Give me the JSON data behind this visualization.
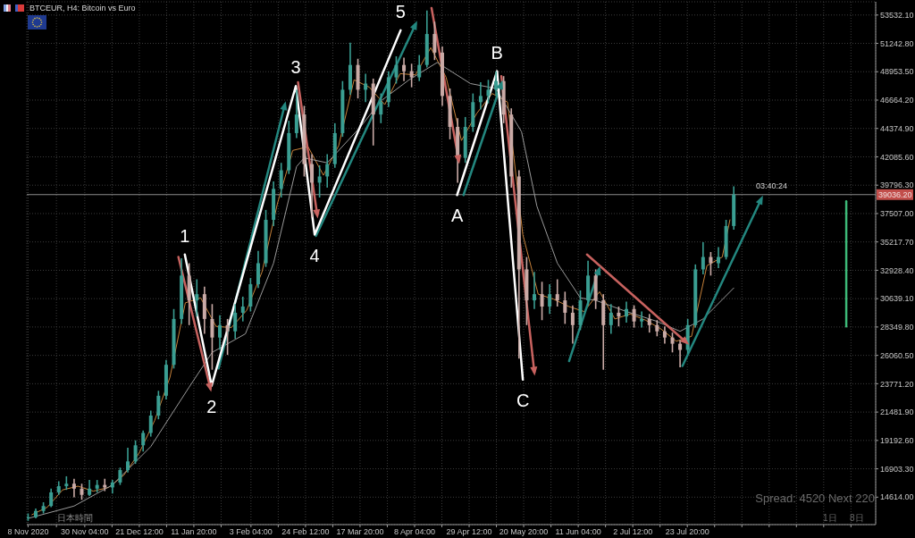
{
  "chart_data": {
    "type": "candlestick",
    "title": "BTCEUR, H4: Bitcoin vs Euro",
    "x": [
      "2020-11-08",
      "2020-11-11",
      "2020-11-14",
      "2020-11-17",
      "2020-11-20",
      "2020-11-23",
      "2020-11-26",
      "2020-11-29",
      "2020-12-02",
      "2020-12-05",
      "2020-12-08",
      "2020-12-11",
      "2020-12-14",
      "2020-12-17",
      "2020-12-20",
      "2020-12-23",
      "2020-12-26",
      "2020-12-29",
      "2021-01-01",
      "2021-01-04",
      "2021-01-07",
      "2021-01-10",
      "2021-01-13",
      "2021-01-16",
      "2021-01-19",
      "2021-01-22",
      "2021-01-25",
      "2021-01-28",
      "2021-01-31",
      "2021-02-03",
      "2021-02-06",
      "2021-02-09",
      "2021-02-12",
      "2021-02-15",
      "2021-02-18",
      "2021-02-21",
      "2021-02-24",
      "2021-02-27",
      "2021-03-02",
      "2021-03-05",
      "2021-03-08",
      "2021-03-11",
      "2021-03-14",
      "2021-03-17",
      "2021-03-20",
      "2021-03-23",
      "2021-03-26",
      "2021-03-29",
      "2021-04-01",
      "2021-04-04",
      "2021-04-07",
      "2021-04-10",
      "2021-04-13",
      "2021-04-16",
      "2021-04-19",
      "2021-04-22",
      "2021-04-25",
      "2021-04-28",
      "2021-05-01",
      "2021-05-04",
      "2021-05-07",
      "2021-05-10",
      "2021-05-13",
      "2021-05-16",
      "2021-05-19",
      "2021-05-22",
      "2021-05-25",
      "2021-05-28",
      "2021-05-31",
      "2021-06-03",
      "2021-06-06",
      "2021-06-09",
      "2021-06-12",
      "2021-06-15",
      "2021-06-18",
      "2021-06-21",
      "2021-06-24",
      "2021-06-27",
      "2021-06-30",
      "2021-07-03",
      "2021-07-06",
      "2021-07-09",
      "2021-07-12",
      "2021-07-15",
      "2021-07-18",
      "2021-07-21",
      "2021-07-24",
      "2021-07-27",
      "2021-07-30",
      "2021-08-02",
      "2021-08-05",
      "2021-08-08",
      "2021-08-11"
    ],
    "ohlc": [
      [
        12900,
        13300,
        12700,
        13000
      ],
      [
        13000,
        13700,
        12900,
        13500
      ],
      [
        13500,
        14200,
        13300,
        13900
      ],
      [
        13900,
        15300,
        13800,
        15000
      ],
      [
        15000,
        15900,
        14800,
        15500
      ],
      [
        15500,
        16300,
        15200,
        15700
      ],
      [
        15700,
        16100,
        14600,
        15300
      ],
      [
        15300,
        15700,
        14400,
        14800
      ],
      [
        14800,
        16000,
        14700,
        15300
      ],
      [
        15300,
        16000,
        15000,
        15600
      ],
      [
        15600,
        16100,
        15100,
        15400
      ],
      [
        15400,
        16000,
        14900,
        15800
      ],
      [
        15800,
        17000,
        15600,
        16800
      ],
      [
        16800,
        18600,
        16600,
        17500
      ],
      [
        17500,
        19200,
        17300,
        18800
      ],
      [
        18800,
        20000,
        18300,
        19800
      ],
      [
        19800,
        21600,
        19500,
        21200
      ],
      [
        21200,
        23200,
        20900,
        22800
      ],
      [
        22800,
        25700,
        22500,
        25300
      ],
      [
        25300,
        29800,
        25000,
        29000
      ],
      [
        29000,
        33900,
        28600,
        32500
      ],
      [
        32500,
        33500,
        28500,
        30500
      ],
      [
        30500,
        32200,
        29200,
        31000
      ],
      [
        31000,
        31600,
        27800,
        29000
      ],
      [
        29000,
        30200,
        24900,
        27500
      ],
      [
        27500,
        29300,
        26500,
        28500
      ],
      [
        28500,
        29000,
        26100,
        28000
      ],
      [
        28000,
        30200,
        27400,
        29500
      ],
      [
        29500,
        30800,
        28800,
        30000
      ],
      [
        30000,
        32300,
        29600,
        31800
      ],
      [
        31800,
        34500,
        31500,
        33500
      ],
      [
        33500,
        37800,
        33200,
        37000
      ],
      [
        37000,
        40100,
        36500,
        39500
      ],
      [
        39500,
        41600,
        38800,
        41000
      ],
      [
        41000,
        45000,
        40700,
        44000
      ],
      [
        44000,
        47500,
        43600,
        45500
      ],
      [
        45500,
        46200,
        40500,
        41500
      ],
      [
        41500,
        42300,
        37200,
        40000
      ],
      [
        40000,
        41400,
        38800,
        40500
      ],
      [
        40500,
        42300,
        39600,
        41500
      ],
      [
        41500,
        44800,
        41200,
        44000
      ],
      [
        44000,
        48200,
        43700,
        47500
      ],
      [
        47500,
        51300,
        47100,
        49500
      ],
      [
        49500,
        50000,
        46800,
        47500
      ],
      [
        47500,
        48800,
        46500,
        48000
      ],
      [
        48000,
        48400,
        43000,
        45500
      ],
      [
        45500,
        47200,
        44800,
        46500
      ],
      [
        46500,
        49000,
        46100,
        48500
      ],
      [
        48500,
        50200,
        48000,
        49500
      ],
      [
        49500,
        50100,
        48200,
        49000
      ],
      [
        49000,
        49600,
        47700,
        48500
      ],
      [
        48500,
        50300,
        48200,
        49500
      ],
      [
        49500,
        53900,
        49300,
        52000
      ],
      [
        52000,
        53000,
        49900,
        50500
      ],
      [
        50500,
        51000,
        46200,
        47000
      ],
      [
        47000,
        47600,
        43500,
        44500
      ],
      [
        44500,
        45200,
        40000,
        42000
      ],
      [
        42000,
        45300,
        41600,
        44500
      ],
      [
        44500,
        47200,
        44100,
        46500
      ],
      [
        46500,
        48100,
        45900,
        47000
      ],
      [
        47000,
        48300,
        46400,
        47500
      ],
      [
        47500,
        49000,
        47000,
        48200
      ],
      [
        48200,
        48600,
        44800,
        45500
      ],
      [
        45500,
        46000,
        39600,
        40500
      ],
      [
        40500,
        41000,
        25800,
        33000
      ],
      [
        33000,
        34000,
        28500,
        30500
      ],
      [
        30500,
        32800,
        29800,
        31000
      ],
      [
        31000,
        32000,
        28900,
        30000
      ],
      [
        30000,
        31800,
        29400,
        31000
      ],
      [
        31000,
        32200,
        30000,
        30500
      ],
      [
        30500,
        31200,
        28600,
        29500
      ],
      [
        29500,
        30100,
        27000,
        28500
      ],
      [
        28500,
        31300,
        28100,
        30500
      ],
      [
        30500,
        33700,
        30100,
        32500
      ],
      [
        32500,
        33000,
        29800,
        30500
      ],
      [
        30500,
        31000,
        24900,
        28500
      ],
      [
        28500,
        30200,
        27800,
        29500
      ],
      [
        29500,
        30000,
        28400,
        29200
      ],
      [
        29200,
        30400,
        28700,
        29800
      ],
      [
        29800,
        30100,
        28300,
        28800
      ],
      [
        28800,
        29600,
        28300,
        29000
      ],
      [
        29000,
        29400,
        27900,
        28500
      ],
      [
        28500,
        28900,
        27600,
        28000
      ],
      [
        28000,
        28400,
        27000,
        27500
      ],
      [
        27500,
        27900,
        26300,
        27000
      ],
      [
        27000,
        27300,
        25100,
        26500
      ],
      [
        26500,
        29000,
        26200,
        28500
      ],
      [
        28500,
        33400,
        28300,
        33000
      ],
      [
        33000,
        35200,
        32600,
        34000
      ],
      [
        34000,
        34400,
        32500,
        33500
      ],
      [
        33500,
        34800,
        33100,
        34000
      ],
      [
        34000,
        37000,
        33800,
        36500
      ],
      [
        36500,
        39700,
        36200,
        39036.2
      ]
    ],
    "colors": [
      "#3a9e92",
      "#3a9e92",
      "#3a9e92",
      "#3a9e92",
      "#3a9e92",
      "#3a9e92",
      "#c9aaa6",
      "#c9aaa6",
      "#3a9e92",
      "#3a9e92",
      "#c9aaa6",
      "#3a9e92",
      "#3a9e92",
      "#3a9e92",
      "#3a9e92",
      "#3a9e92",
      "#3a9e92",
      "#3a9e92",
      "#3a9e92",
      "#3a9e92",
      "#3a9e92",
      "#c9aaa6",
      "#3a9e92",
      "#c9aaa6",
      "#c9aaa6",
      "#3a9e92",
      "#c9aaa6",
      "#3a9e92",
      "#3a9e92",
      "#3a9e92",
      "#3a9e92",
      "#3a9e92",
      "#3a9e92",
      "#3a9e92",
      "#3a9e92",
      "#3a9e92",
      "#c9aaa6",
      "#c9aaa6",
      "#3a9e92",
      "#3a9e92",
      "#3a9e92",
      "#3a9e92",
      "#3a9e92",
      "#c9aaa6",
      "#3a9e92",
      "#c9aaa6",
      "#3a9e92",
      "#3a9e92",
      "#3a9e92",
      "#c9aaa6",
      "#c9aaa6",
      "#3a9e92",
      "#3a9e92",
      "#c9aaa6",
      "#c9aaa6",
      "#c9aaa6",
      "#c9aaa6",
      "#3a9e92",
      "#3a9e92",
      "#3a9e92",
      "#3a9e92",
      "#3a9e92",
      "#c9aaa6",
      "#c9aaa6",
      "#c9aaa6",
      "#c9aaa6",
      "#3a9e92",
      "#c9aaa6",
      "#3a9e92",
      "#c9aaa6",
      "#c9aaa6",
      "#c9aaa6",
      "#3a9e92",
      "#3a9e92",
      "#c9aaa6",
      "#c9aaa6",
      "#3a9e92",
      "#c9aaa6",
      "#3a9e92",
      "#c9aaa6",
      "#3a9e92",
      "#c9aaa6",
      "#c9aaa6",
      "#c9aaa6",
      "#c9aaa6",
      "#c9aaa6",
      "#3a9e92",
      "#3a9e92",
      "#3a9e92",
      "#c9aaa6",
      "#3a9e92",
      "#3a9e92",
      "#3a9e92"
    ],
    "series": [
      {
        "type": "line",
        "color": "#c8823a",
        "x": [
          "2020-11-09T12:00",
          "2020-11-15T12:00",
          "2020-11-21T12:00",
          "2020-11-27T12:00",
          "2020-12-03T12:00",
          "2020-12-09T12:00",
          "2020-12-15T12:00",
          "2020-12-21T12:00",
          "2020-12-27T12:00",
          "2021-01-02T12:00",
          "2021-01-08T12:00",
          "2021-01-14T12:00",
          "2021-01-20T12:00",
          "2021-01-26T12:00",
          "2021-02-01T12:00",
          "2021-02-07T12:00",
          "2021-02-13T12:00",
          "2021-02-19T12:00",
          "2021-02-25T12:00",
          "2021-03-03T12:00",
          "2021-03-09T12:00",
          "2021-03-15T12:00",
          "2021-03-21T12:00",
          "2021-03-27T12:00",
          "2021-04-02T12:00",
          "2021-04-08T12:00",
          "2021-04-14T12:00",
          "2021-04-20T12:00",
          "2021-04-26T12:00",
          "2021-05-02T12:00",
          "2021-05-08T12:00",
          "2021-05-14T12:00",
          "2021-05-20T12:00",
          "2021-05-26T12:00",
          "2021-06-01T12:00",
          "2021-06-07T12:00",
          "2021-06-13T12:00",
          "2021-06-19T12:00",
          "2021-06-25T12:00",
          "2021-07-01T12:00",
          "2021-07-07T12:00",
          "2021-07-13T12:00",
          "2021-07-19T12:00",
          "2021-07-25T12:00",
          "2021-07-31T12:00",
          "2021-08-06T12:00",
          "2021-08-09T12:00"
        ],
        "values": [
          13200,
          13800,
          15200,
          15500,
          15100,
          15400,
          16400,
          18200,
          20800,
          24300,
          30300,
          30700,
          28400,
          28300,
          29700,
          32800,
          38300,
          42600,
          42900,
          40600,
          43000,
          48300,
          47700,
          46300,
          48800,
          48700,
          50900,
          48500,
          43400,
          45600,
          47200,
          46500,
          35800,
          31000,
          30600,
          30000,
          29600,
          31200,
          29000,
          29400,
          28900,
          28200,
          27200,
          27600,
          33300,
          34000,
          37000
        ]
      },
      {
        "type": "line",
        "color": "#9a9a9a",
        "x": [
          "2020-11-08",
          "2020-11-26",
          "2020-12-11",
          "2020-12-26",
          "2021-01-10",
          "2021-01-19",
          "2021-02-01",
          "2021-02-12",
          "2021-02-21",
          "2021-02-24",
          "2021-03-05",
          "2021-03-18",
          "2021-03-26",
          "2021-04-06",
          "2021-04-17",
          "2021-04-30",
          "2021-05-10",
          "2021-05-20",
          "2021-05-26",
          "2021-06-03",
          "2021-06-12",
          "2021-06-18",
          "2021-06-30",
          "2021-07-12",
          "2021-07-21",
          "2021-07-30",
          "2021-08-11"
        ],
        "values": [
          12900,
          13900,
          15600,
          18700,
          23500,
          26300,
          27800,
          33500,
          41300,
          42000,
          41600,
          44500,
          46600,
          48300,
          49700,
          48000,
          47600,
          44100,
          38100,
          33500,
          30700,
          30500,
          29600,
          28800,
          28000,
          29000,
          31500
        ]
      },
      {
        "type": "line",
        "color": "#c8625f",
        "marker": "triangle",
        "x": [
          "2021-01-05T19:00",
          "2021-01-18T07:00"
        ],
        "values": [
          34000,
          23400
        ]
      },
      {
        "type": "line",
        "color": "#c8625f",
        "marker": "triangle",
        "x": [
          "2021-02-21T14:00",
          "2021-03-01T02:00"
        ],
        "values": [
          48100,
          37400
        ]
      },
      {
        "type": "line",
        "color": "#c8625f",
        "marker": "triangle",
        "x": [
          "2021-04-14T19:00",
          "2021-04-25T10:00"
        ],
        "values": [
          54100,
          41800
        ]
      },
      {
        "type": "line",
        "color": "#c8625f",
        "marker": "triangle",
        "x": [
          "2021-05-12T02:00",
          "2021-05-25T00:00"
        ],
        "values": [
          48600,
          24700
        ]
      },
      {
        "type": "line",
        "color": "#c8625f",
        "marker": "triangle",
        "x": [
          "2021-06-14T14:00",
          "2021-07-23T12:00"
        ],
        "values": [
          34200,
          27100
        ]
      },
      {
        "type": "line",
        "color": "#23877f",
        "marker": "triangle",
        "x": [
          "2021-01-21T12:00",
          "2021-02-16T10:00"
        ],
        "values": [
          25000,
          46300
        ]
      },
      {
        "type": "line",
        "color": "#23877f",
        "marker": "triangle",
        "x": [
          "2021-02-28T14:00",
          "2021-04-08T14:00"
        ],
        "values": [
          35700,
          52800
        ]
      },
      {
        "type": "line",
        "color": "#23877f",
        "marker": "triangle",
        "x": [
          "2021-04-27T07:00",
          "2021-05-12T02:00"
        ],
        "values": [
          39000,
          48000
        ]
      },
      {
        "type": "line",
        "color": "#23877f",
        "marker": "triangle",
        "x": [
          "2021-06-07T14:00",
          "2021-06-19T07:00"
        ],
        "values": [
          25600,
          33000
        ]
      },
      {
        "type": "line",
        "color": "#23877f",
        "marker": "triangle",
        "x": [
          "2021-07-21T22:00",
          "2021-08-21T19:00"
        ],
        "values": [
          25200,
          38700
        ]
      },
      {
        "type": "line",
        "color": "#ffffff",
        "x": [
          "2021-01-08T07:00",
          "2021-01-18T19:00",
          "2021-02-20T17:00",
          "2021-02-28T02:00",
          "2021-04-02T17:00"
        ],
        "values": [
          34200,
          23600,
          47800,
          35800,
          52300
        ]
      },
      {
        "type": "line",
        "color": "#ffffff",
        "x": [
          "2021-04-24T19:00",
          "2021-05-10T10:00",
          "2021-05-20T12:00"
        ],
        "values": [
          39000,
          49000,
          24100
        ]
      },
      {
        "type": "line",
        "color": "#3dba78",
        "x": [
          "2021-09-24",
          "2021-09-24"
        ],
        "values": [
          38500,
          28400
        ]
      }
    ],
    "xlim": [
      "2020-11-07T12:00",
      "2021-10-05T12:00"
    ],
    "xticks": [
      {
        "value": "2020-11-08T00:00",
        "label": "8 Nov 2020"
      },
      {
        "value": "2020-11-19T02:00",
        "label": null
      },
      {
        "value": "2020-11-30T04:00",
        "label": "30 Nov 04:00"
      },
      {
        "value": "2020-12-10T20:00",
        "label": null
      },
      {
        "value": "2020-12-21T12:00",
        "label": "21 Dec 12:00"
      },
      {
        "value": "2021-01-01T04:00",
        "label": null
      },
      {
        "value": "2021-01-11T20:00",
        "label": "11 Jan 20:00"
      },
      {
        "value": "2021-01-22T12:00",
        "label": null
      },
      {
        "value": "2021-02-03T04:00",
        "label": "3 Feb 04:00"
      },
      {
        "value": "2021-02-13T20:00",
        "label": null
      },
      {
        "value": "2021-02-24T12:00",
        "label": "24 Feb 12:00"
      },
      {
        "value": "2021-03-07T04:00",
        "label": null
      },
      {
        "value": "2021-03-17T20:00",
        "label": "17 Mar 20:00"
      },
      {
        "value": "2021-03-28T12:00",
        "label": null
      },
      {
        "value": "2021-04-08T04:00",
        "label": "8 Apr 04:00"
      },
      {
        "value": "2021-04-18T20:00",
        "label": null
      },
      {
        "value": "2021-04-29T12:00",
        "label": "29 Apr 12:00"
      },
      {
        "value": "2021-05-10T04:00",
        "label": null
      },
      {
        "value": "2021-05-20T20:00",
        "label": "20 May 20:00"
      },
      {
        "value": "2021-05-31T12:00",
        "label": null
      },
      {
        "value": "2021-06-11T04:00",
        "label": "11 Jun 04:00"
      },
      {
        "value": "2021-06-21T20:00",
        "label": null
      },
      {
        "value": "2021-07-02T12:00",
        "label": "2 Jul 12:00"
      },
      {
        "value": "2021-07-13T04:00",
        "label": null
      },
      {
        "value": "2021-07-23T20:00",
        "label": "23 Jul 20:00"
      },
      {
        "value": "2021-08-03T12:00",
        "label": null
      },
      {
        "value": "2021-08-14T04:00",
        "label": null
      },
      {
        "value": "2021-08-24T20:00",
        "label": null
      },
      {
        "value": "2021-09-04T12:00",
        "label": null
      },
      {
        "value": "2021-09-15T04:00",
        "label": null
      },
      {
        "value": "2021-09-25T20:00",
        "label": null
      }
    ],
    "ylim": [
      12400,
      54600
    ],
    "yticks": [
      {
        "value": 14614,
        "label": "14614.00"
      },
      {
        "value": 16903.3,
        "label": "16903.30"
      },
      {
        "value": 19192.6,
        "label": "19192.60"
      },
      {
        "value": 21481.9,
        "label": "21481.90"
      },
      {
        "value": 23771.2,
        "label": "23771.20"
      },
      {
        "value": 26060.5,
        "label": "26060.50"
      },
      {
        "value": 28349.8,
        "label": "28349.80"
      },
      {
        "value": 30639.1,
        "label": "30639.10"
      },
      {
        "value": 32928.4,
        "label": "32928.40"
      },
      {
        "value": 35217.7,
        "label": "35217.70"
      },
      {
        "value": 37507,
        "label": "37507.00"
      },
      {
        "value": 39796.3,
        "label": "39796.30"
      },
      {
        "value": 42085.6,
        "label": "42085.60"
      },
      {
        "value": 44374.9,
        "label": "44374.90"
      },
      {
        "value": 46664.2,
        "label": "46664.20"
      },
      {
        "value": 48953.5,
        "label": "48953.50"
      },
      {
        "value": 51242.8,
        "label": "51242.80"
      },
      {
        "value": 53532.1,
        "label": "53532.10"
      }
    ],
    "grid": true,
    "ref_lines": [
      {
        "axis": "y",
        "value": 39036.2,
        "label": "39036.20",
        "color": "#8c8c8c"
      }
    ],
    "annotations": [
      {
        "text": "1",
        "x": "2021-01-08T07:00",
        "y": 34200
      },
      {
        "text": "2",
        "x": "2021-01-18T19:00",
        "y": 23600
      },
      {
        "text": "3",
        "x": "2021-02-20T17:00",
        "y": 47800
      },
      {
        "text": "4",
        "x": "2021-02-28T02:00",
        "y": 35800
      },
      {
        "text": "5",
        "x": "2021-04-02T17:00",
        "y": 52300
      },
      {
        "text": "A",
        "x": "2021-04-24T19:00",
        "y": 39000
      },
      {
        "text": "B",
        "x": "2021-05-10T10:00",
        "y": 49000
      },
      {
        "text": "C",
        "x": "2021-05-20T12:00",
        "y": 24100
      },
      "03:40:24",
      "日本時間",
      "Spread: 4520 Next 220",
      "1日",
      "8日"
    ]
  }
}
